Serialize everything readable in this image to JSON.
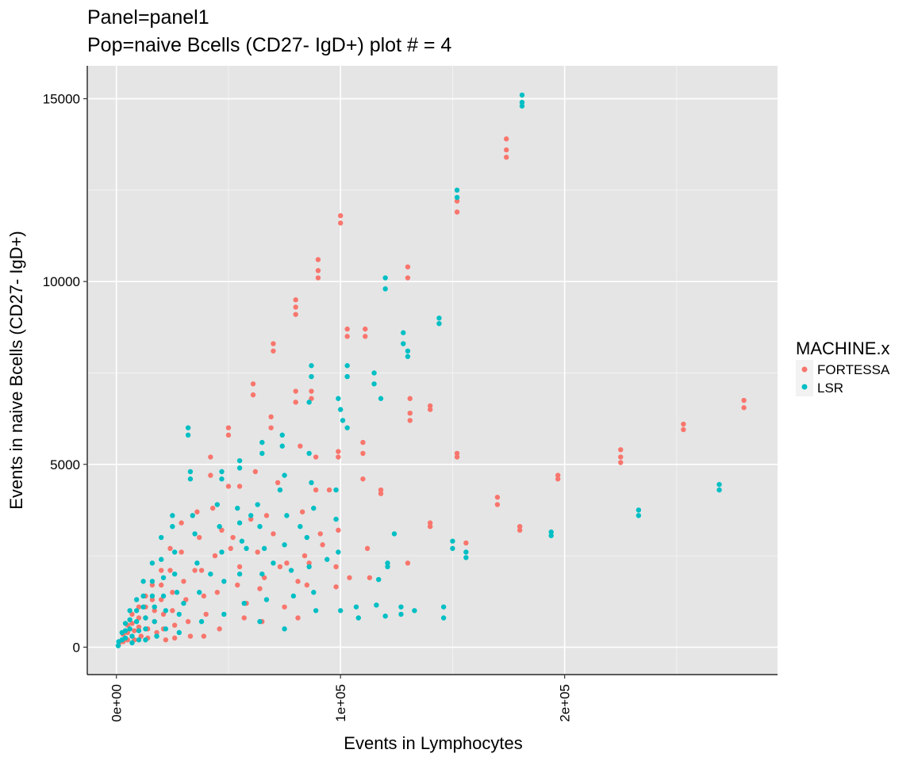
{
  "chart_data": {
    "type": "scatter",
    "title": "Panel=panel1",
    "subtitle": "Pop=naive Bcells (CD27- IgD+) plot # = 4",
    "xlabel": "Events in Lymphocytes",
    "ylabel": "Events in naive Bcells (CD27- IgD+)",
    "xlim": [
      -13000,
      295000
    ],
    "ylim": [
      -750,
      15900
    ],
    "x_ticks": [
      0,
      100000,
      200000
    ],
    "x_tick_labels": [
      "0e+00",
      "1e+05",
      "2e+05"
    ],
    "y_ticks": [
      0,
      5000,
      10000,
      15000
    ],
    "y_tick_labels": [
      "0",
      "5000",
      "10000",
      "15000"
    ],
    "grid": true,
    "legend": {
      "title": "MACHINE.x",
      "position": "right"
    },
    "colors": {
      "FORTESSA": "#F8766D",
      "LSR": "#00BFC4",
      "panel": "#E5E5E5",
      "grid": "#FFFFFF"
    },
    "series": [
      {
        "name": "FORTESSA",
        "points": [
          [
            280000,
            6750
          ],
          [
            280000,
            6550
          ],
          [
            253000,
            6100
          ],
          [
            253000,
            5950
          ],
          [
            225000,
            5400
          ],
          [
            225000,
            5200
          ],
          [
            225000,
            5050
          ],
          [
            197000,
            4700
          ],
          [
            197000,
            4600
          ],
          [
            180000,
            3300
          ],
          [
            180000,
            3200
          ],
          [
            170000,
            4100
          ],
          [
            170000,
            3900
          ],
          [
            156000,
            2850
          ],
          [
            152000,
            5300
          ],
          [
            152000,
            5200
          ],
          [
            152000,
            12200
          ],
          [
            152000,
            11900
          ],
          [
            140000,
            6600
          ],
          [
            140000,
            6500
          ],
          [
            140000,
            3400
          ],
          [
            140000,
            3300
          ],
          [
            174000,
            13900
          ],
          [
            174000,
            13600
          ],
          [
            174000,
            13400
          ],
          [
            130000,
            10400
          ],
          [
            130000,
            10100
          ],
          [
            131000,
            6800
          ],
          [
            131000,
            6400
          ],
          [
            131000,
            6200
          ],
          [
            130000,
            2300
          ],
          [
            118000,
            4300
          ],
          [
            118000,
            4200
          ],
          [
            111000,
            8700
          ],
          [
            111000,
            8500
          ],
          [
            110000,
            5600
          ],
          [
            110000,
            5300
          ],
          [
            110000,
            4600
          ],
          [
            112000,
            2700
          ],
          [
            113000,
            1900
          ],
          [
            103000,
            8700
          ],
          [
            103000,
            8500
          ],
          [
            104000,
            1900
          ],
          [
            100000,
            11800
          ],
          [
            100000,
            11600
          ],
          [
            99000,
            5350
          ],
          [
            99000,
            5200
          ],
          [
            99000,
            3200
          ],
          [
            98000,
            2200
          ],
          [
            98000,
            1650
          ],
          [
            90000,
            10600
          ],
          [
            90000,
            10300
          ],
          [
            90000,
            10100
          ],
          [
            87000,
            7000
          ],
          [
            87000,
            6800
          ],
          [
            89000,
            5200
          ],
          [
            89000,
            4300
          ],
          [
            91000,
            3100
          ],
          [
            86000,
            2300
          ],
          [
            80000,
            9500
          ],
          [
            80000,
            9300
          ],
          [
            80000,
            9100
          ],
          [
            80000,
            7000
          ],
          [
            80000,
            6700
          ],
          [
            82000,
            5500
          ],
          [
            83000,
            3700
          ],
          [
            84000,
            2500
          ],
          [
            81000,
            1800
          ],
          [
            81000,
            800
          ],
          [
            70000,
            8300
          ],
          [
            70000,
            8100
          ],
          [
            69000,
            6300
          ],
          [
            69000,
            6000
          ],
          [
            72000,
            4500
          ],
          [
            70000,
            3100
          ],
          [
            73000,
            2200
          ],
          [
            75000,
            1100
          ],
          [
            61000,
            7200
          ],
          [
            61000,
            6900
          ],
          [
            62000,
            4800
          ],
          [
            60000,
            3500
          ],
          [
            63000,
            2600
          ],
          [
            64000,
            1600
          ],
          [
            65000,
            700
          ],
          [
            50000,
            6000
          ],
          [
            50000,
            5800
          ],
          [
            55000,
            4400
          ],
          [
            50000,
            4400
          ],
          [
            52000,
            3000
          ],
          [
            51000,
            2700
          ],
          [
            55000,
            2200
          ],
          [
            54000,
            1700
          ],
          [
            57000,
            800
          ],
          [
            42000,
            5200
          ],
          [
            42000,
            4700
          ],
          [
            43000,
            3800
          ],
          [
            44000,
            2500
          ],
          [
            45000,
            1500
          ],
          [
            46000,
            500
          ],
          [
            36000,
            3700
          ],
          [
            37000,
            3000
          ],
          [
            38000,
            2100
          ],
          [
            39000,
            1400
          ],
          [
            40000,
            900
          ],
          [
            39000,
            300
          ],
          [
            29000,
            3400
          ],
          [
            29000,
            2600
          ],
          [
            30000,
            1800
          ],
          [
            31000,
            1300
          ],
          [
            32000,
            700
          ],
          [
            33000,
            300
          ],
          [
            24000,
            2700
          ],
          [
            24000,
            2100
          ],
          [
            25000,
            1500
          ],
          [
            25000,
            1000
          ],
          [
            26000,
            600
          ],
          [
            26000,
            250
          ],
          [
            20000,
            2100
          ],
          [
            20000,
            1700
          ],
          [
            20000,
            1300
          ],
          [
            21000,
            900
          ],
          [
            21000,
            500
          ],
          [
            22000,
            200
          ],
          [
            16000,
            1700
          ],
          [
            16000,
            1300
          ],
          [
            17000,
            1000
          ],
          [
            17000,
            700
          ],
          [
            18000,
            400
          ],
          [
            13000,
            1400
          ],
          [
            13000,
            1100
          ],
          [
            13000,
            800
          ],
          [
            14000,
            500
          ],
          [
            14000,
            250
          ],
          [
            10000,
            1100
          ],
          [
            10000,
            800
          ],
          [
            10000,
            550
          ],
          [
            11000,
            300
          ],
          [
            7000,
            900
          ],
          [
            7000,
            650
          ],
          [
            8000,
            450
          ],
          [
            8000,
            200
          ],
          [
            5000,
            600
          ],
          [
            5000,
            400
          ],
          [
            5000,
            200
          ],
          [
            3000,
            350
          ],
          [
            3000,
            150
          ],
          [
            1500,
            150
          ],
          [
            1000,
            60
          ],
          [
            58000,
            1200
          ],
          [
            66000,
            1900
          ],
          [
            76000,
            2300
          ],
          [
            85000,
            1700
          ],
          [
            92000,
            2800
          ],
          [
            95000,
            4300
          ],
          [
            67000,
            3600
          ],
          [
            47000,
            3200
          ],
          [
            35000,
            2100
          ]
        ]
      },
      {
        "name": "LSR",
        "points": [
          [
            181000,
            15100
          ],
          [
            181000,
            14900
          ],
          [
            181000,
            14800
          ],
          [
            152000,
            12500
          ],
          [
            152000,
            12300
          ],
          [
            144000,
            9000
          ],
          [
            144000,
            8850
          ],
          [
            146000,
            1100
          ],
          [
            146000,
            800
          ],
          [
            150000,
            2900
          ],
          [
            150000,
            2700
          ],
          [
            156000,
            2600
          ],
          [
            156000,
            2450
          ],
          [
            194000,
            3150
          ],
          [
            194000,
            3050
          ],
          [
            233000,
            3750
          ],
          [
            233000,
            3600
          ],
          [
            269000,
            4450
          ],
          [
            269000,
            4300
          ],
          [
            120000,
            10100
          ],
          [
            120000,
            9800
          ],
          [
            128000,
            8600
          ],
          [
            128000,
            8300
          ],
          [
            130000,
            8100
          ],
          [
            130000,
            7950
          ],
          [
            115000,
            7500
          ],
          [
            115000,
            7200
          ],
          [
            118000,
            6800
          ],
          [
            121000,
            2300
          ],
          [
            121000,
            2200
          ],
          [
            124000,
            3100
          ],
          [
            117000,
            1850
          ],
          [
            116000,
            1150
          ],
          [
            120000,
            850
          ],
          [
            127000,
            1100
          ],
          [
            127000,
            900
          ],
          [
            133000,
            1000
          ],
          [
            103000,
            7700
          ],
          [
            103000,
            7400
          ],
          [
            99000,
            6800
          ],
          [
            100000,
            6500
          ],
          [
            101000,
            6200
          ],
          [
            103000,
            6000
          ],
          [
            98000,
            4300
          ],
          [
            98000,
            3500
          ],
          [
            99000,
            2600
          ],
          [
            100000,
            1000
          ],
          [
            107000,
            1100
          ],
          [
            108000,
            800
          ],
          [
            87000,
            7700
          ],
          [
            87000,
            7400
          ],
          [
            86000,
            6700
          ],
          [
            86000,
            5300
          ],
          [
            87000,
            4500
          ],
          [
            88000,
            3800
          ],
          [
            85000,
            3000
          ],
          [
            86000,
            2200
          ],
          [
            88000,
            1500
          ],
          [
            89000,
            1000
          ],
          [
            74000,
            5800
          ],
          [
            74000,
            5500
          ],
          [
            75000,
            4700
          ],
          [
            73000,
            4300
          ],
          [
            76000,
            3600
          ],
          [
            75000,
            2800
          ],
          [
            78000,
            2100
          ],
          [
            79000,
            1400
          ],
          [
            75000,
            500
          ],
          [
            65000,
            5600
          ],
          [
            65000,
            5300
          ],
          [
            63000,
            3900
          ],
          [
            64000,
            3300
          ],
          [
            66000,
            2700
          ],
          [
            65000,
            2000
          ],
          [
            67000,
            1300
          ],
          [
            64000,
            700
          ],
          [
            55000,
            5100
          ],
          [
            55000,
            4900
          ],
          [
            54000,
            3800
          ],
          [
            55000,
            3400
          ],
          [
            56000,
            2900
          ],
          [
            55000,
            2000
          ],
          [
            57000,
            1200
          ],
          [
            47000,
            4800
          ],
          [
            47000,
            4600
          ],
          [
            45000,
            3900
          ],
          [
            46000,
            3300
          ],
          [
            47000,
            2600
          ],
          [
            48000,
            1800
          ],
          [
            48000,
            900
          ],
          [
            32000,
            6000
          ],
          [
            32000,
            5800
          ],
          [
            33000,
            4800
          ],
          [
            33000,
            4600
          ],
          [
            34000,
            3600
          ],
          [
            35000,
            3100
          ],
          [
            36000,
            2300
          ],
          [
            37000,
            1500
          ],
          [
            38000,
            700
          ],
          [
            25000,
            3600
          ],
          [
            25000,
            3300
          ],
          [
            26000,
            2600
          ],
          [
            26000,
            2000
          ],
          [
            27000,
            1500
          ],
          [
            28000,
            900
          ],
          [
            28000,
            400
          ],
          [
            20000,
            3000
          ],
          [
            20000,
            2400
          ],
          [
            21000,
            1900
          ],
          [
            21000,
            1400
          ],
          [
            22000,
            1000
          ],
          [
            22000,
            500
          ],
          [
            16000,
            2300
          ],
          [
            16000,
            1800
          ],
          [
            16000,
            1400
          ],
          [
            17000,
            1100
          ],
          [
            17000,
            700
          ],
          [
            18000,
            300
          ],
          [
            12000,
            1800
          ],
          [
            12000,
            1400
          ],
          [
            12000,
            1100
          ],
          [
            13000,
            800
          ],
          [
            13000,
            500
          ],
          [
            13000,
            200
          ],
          [
            9000,
            1300
          ],
          [
            9000,
            1000
          ],
          [
            9000,
            700
          ],
          [
            10000,
            450
          ],
          [
            10000,
            200
          ],
          [
            6000,
            1000
          ],
          [
            6000,
            750
          ],
          [
            6000,
            500
          ],
          [
            7000,
            300
          ],
          [
            7000,
            120
          ],
          [
            4000,
            650
          ],
          [
            4000,
            450
          ],
          [
            4000,
            250
          ],
          [
            2500,
            400
          ],
          [
            2500,
            200
          ],
          [
            1000,
            150
          ],
          [
            800,
            40
          ],
          [
            60000,
            3600
          ],
          [
            82000,
            3300
          ],
          [
            94000,
            2400
          ],
          [
            70000,
            2300
          ],
          [
            58000,
            2700
          ],
          [
            42000,
            2000
          ],
          [
            30000,
            1200
          ]
        ]
      }
    ]
  }
}
